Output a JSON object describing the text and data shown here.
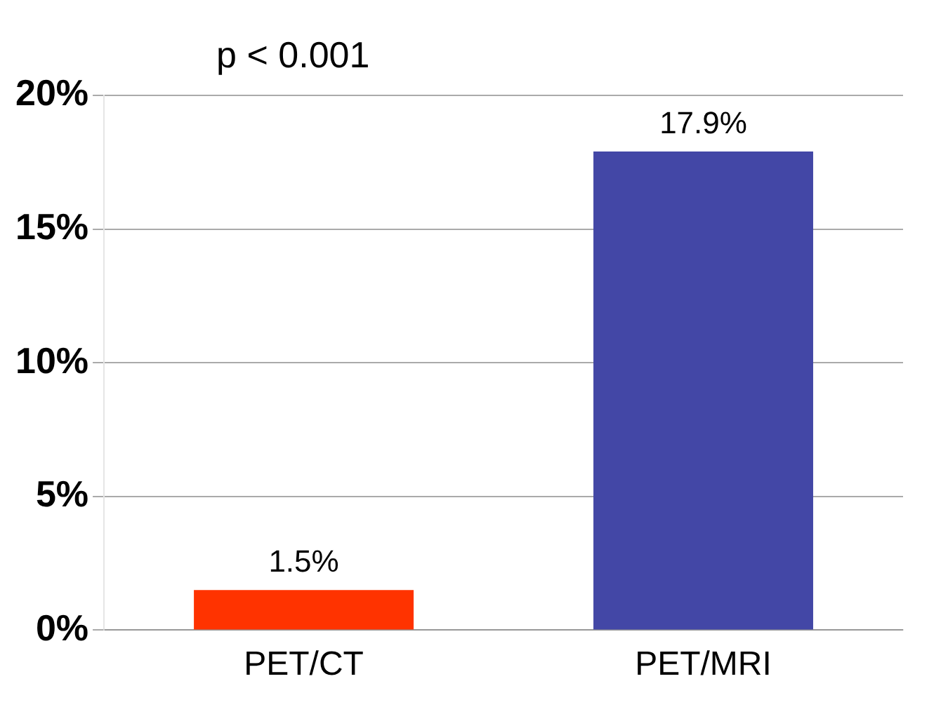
{
  "chart_data": {
    "type": "bar",
    "categories": [
      "PET/CT",
      "PET/MRI"
    ],
    "values": [
      1.5,
      17.9
    ],
    "colors": [
      "#ff3300",
      "#4347a6"
    ],
    "value_labels": [
      "1.5%",
      "17.9%"
    ],
    "ylim": [
      0,
      20
    ],
    "yticks": [
      {
        "value": 0,
        "label": "0%"
      },
      {
        "value": 5,
        "label": "5%"
      },
      {
        "value": 10,
        "label": "10%"
      },
      {
        "value": 15,
        "label": "15%"
      },
      {
        "value": 20,
        "label": "20%"
      }
    ],
    "grid": "y",
    "annotations": [
      "p < 0.001"
    ]
  }
}
